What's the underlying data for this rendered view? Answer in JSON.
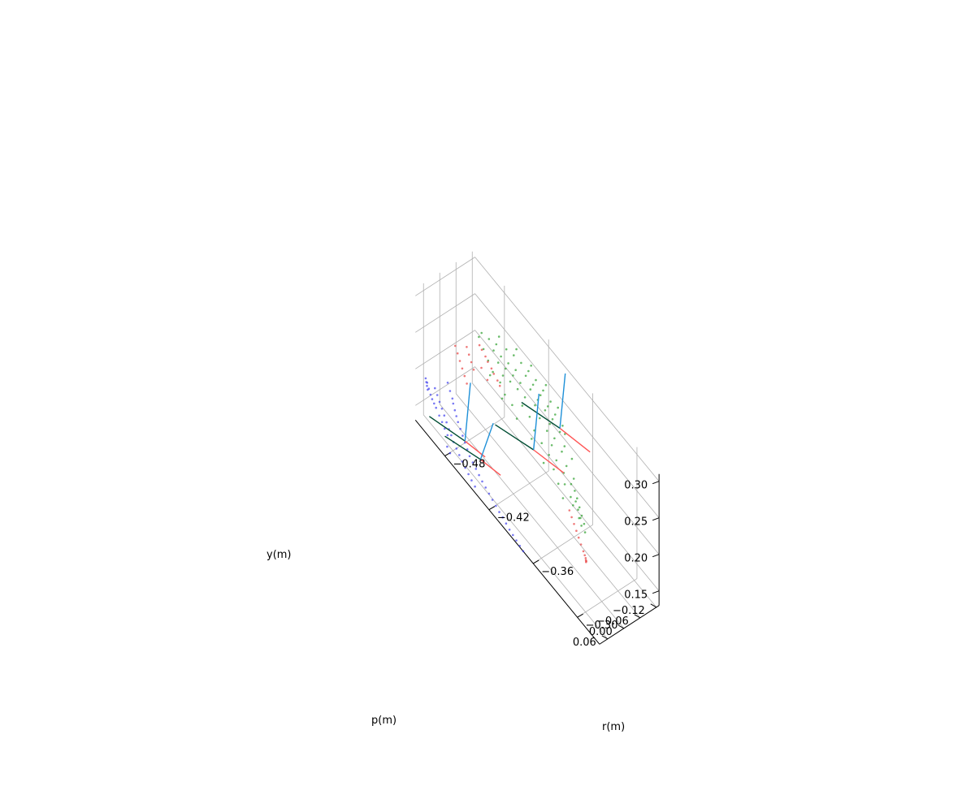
{
  "chart_data": {
    "type": "scatter",
    "projection": "3d",
    "view": {
      "elevation_deg": 30,
      "azimuth_deg": -135
    },
    "grid": true,
    "legend": "none",
    "title": "",
    "axes": {
      "r": {
        "label": "r(m)",
        "ticks": [
          -0.48,
          -0.42,
          -0.36,
          -0.3
        ],
        "tick_labels": [
          "−0.48",
          "−0.42",
          "−0.36",
          "−0.30"
        ],
        "range": [
          -0.52,
          -0.27
        ]
      },
      "p": {
        "label": "p(m)",
        "ticks": [
          -0.12,
          -0.06,
          0.0,
          0.06
        ],
        "tick_labels": [
          "−0.12",
          "−0.06",
          "0.00",
          "0.06"
        ],
        "range": [
          -0.13,
          0.09
        ]
      },
      "y": {
        "label": "y(m)",
        "ticks": [
          0.15,
          0.2,
          0.25,
          0.3
        ],
        "tick_labels": [
          "0.15",
          "0.20",
          "0.25",
          "0.30"
        ],
        "range": [
          0.13,
          0.31
        ]
      }
    },
    "series": [
      {
        "color": "#2ca02c",
        "points": [
          [
            -0.49,
            -0.1,
            0.232
          ],
          [
            -0.48,
            -0.1,
            0.237
          ],
          [
            -0.47,
            -0.11,
            0.24
          ],
          [
            -0.46,
            -0.11,
            0.244
          ],
          [
            -0.45,
            -0.11,
            0.246
          ],
          [
            -0.44,
            -0.11,
            0.247
          ],
          [
            -0.43,
            -0.11,
            0.247
          ],
          [
            -0.42,
            -0.11,
            0.245
          ],
          [
            -0.41,
            -0.11,
            0.242
          ],
          [
            -0.4,
            -0.1,
            0.239
          ],
          [
            -0.39,
            -0.1,
            0.236
          ],
          [
            -0.385,
            -0.095,
            0.232
          ],
          [
            -0.48,
            -0.09,
            0.231
          ],
          [
            -0.47,
            -0.09,
            0.235
          ],
          [
            -0.46,
            -0.09,
            0.238
          ],
          [
            -0.45,
            -0.09,
            0.241
          ],
          [
            -0.44,
            -0.1,
            0.243
          ],
          [
            -0.43,
            -0.1,
            0.243
          ],
          [
            -0.42,
            -0.1,
            0.241
          ],
          [
            -0.41,
            -0.1,
            0.238
          ],
          [
            -0.4,
            -0.09,
            0.235
          ],
          [
            -0.39,
            -0.09,
            0.23
          ],
          [
            -0.38,
            -0.08,
            0.225
          ],
          [
            -0.37,
            -0.08,
            0.22
          ],
          [
            -0.47,
            -0.08,
            0.229
          ],
          [
            -0.46,
            -0.08,
            0.233
          ],
          [
            -0.45,
            -0.08,
            0.236
          ],
          [
            -0.44,
            -0.08,
            0.238
          ],
          [
            -0.43,
            -0.09,
            0.239
          ],
          [
            -0.42,
            -0.09,
            0.237
          ],
          [
            -0.41,
            -0.09,
            0.235
          ],
          [
            -0.4,
            -0.08,
            0.231
          ],
          [
            -0.39,
            -0.07,
            0.226
          ],
          [
            -0.38,
            -0.07,
            0.22
          ],
          [
            -0.37,
            -0.06,
            0.215
          ],
          [
            -0.36,
            -0.06,
            0.21
          ],
          [
            -0.36,
            -0.05,
            0.205
          ],
          [
            -0.355,
            -0.05,
            0.202
          ],
          [
            -0.35,
            -0.045,
            0.199
          ],
          [
            -0.35,
            -0.04,
            0.196
          ],
          [
            -0.345,
            -0.04,
            0.194
          ],
          [
            -0.345,
            -0.035,
            0.192
          ],
          [
            -0.34,
            -0.035,
            0.19
          ],
          [
            -0.34,
            -0.03,
            0.188
          ],
          [
            -0.335,
            -0.03,
            0.186
          ],
          [
            -0.46,
            -0.07,
            0.226
          ],
          [
            -0.45,
            -0.07,
            0.23
          ],
          [
            -0.44,
            -0.07,
            0.232
          ],
          [
            -0.43,
            -0.07,
            0.233
          ],
          [
            -0.42,
            -0.08,
            0.232
          ],
          [
            -0.41,
            -0.07,
            0.229
          ],
          [
            -0.4,
            -0.07,
            0.224
          ],
          [
            -0.39,
            -0.06,
            0.219
          ],
          [
            -0.38,
            -0.05,
            0.213
          ],
          [
            -0.37,
            -0.05,
            0.208
          ],
          [
            -0.5,
            -0.1,
            0.228
          ],
          [
            -0.5,
            -0.09,
            0.225
          ],
          [
            -0.49,
            -0.08,
            0.223
          ],
          [
            -0.48,
            -0.07,
            0.222
          ],
          [
            -0.47,
            -0.06,
            0.221
          ],
          [
            -0.46,
            -0.06,
            0.219
          ],
          [
            -0.45,
            -0.05,
            0.217
          ],
          [
            -0.44,
            -0.05,
            0.215
          ],
          [
            -0.43,
            -0.06,
            0.224
          ],
          [
            -0.42,
            -0.06,
            0.221
          ],
          [
            -0.41,
            -0.05,
            0.217
          ],
          [
            -0.4,
            -0.05,
            0.212
          ],
          [
            -0.39,
            -0.05,
            0.208
          ],
          [
            -0.38,
            -0.04,
            0.203
          ],
          [
            -0.365,
            -0.04,
            0.201
          ],
          [
            -0.355,
            -0.035,
            0.197
          ],
          [
            -0.35,
            -0.03,
            0.193
          ],
          [
            -0.34,
            -0.025,
            0.189
          ],
          [
            -0.335,
            -0.02,
            0.186
          ],
          [
            -0.33,
            -0.02,
            0.183
          ],
          [
            -0.48,
            -0.11,
            0.245
          ],
          [
            -0.46,
            -0.12,
            0.25
          ],
          [
            -0.44,
            -0.12,
            0.252
          ],
          [
            -0.42,
            -0.12,
            0.25
          ],
          [
            -0.4,
            -0.11,
            0.246
          ],
          [
            -0.47,
            -0.05,
            0.219
          ],
          [
            -0.45,
            -0.04,
            0.214
          ],
          [
            -0.43,
            -0.04,
            0.211
          ],
          [
            -0.41,
            -0.04,
            0.208
          ],
          [
            -0.39,
            -0.03,
            0.202
          ],
          [
            -0.37,
            -0.03,
            0.198
          ],
          [
            -0.36,
            -0.02,
            0.193
          ]
        ]
      },
      {
        "color": "#4040ee",
        "points": [
          [
            -0.5,
            0.025,
            0.19
          ],
          [
            -0.495,
            0.03,
            0.186
          ],
          [
            -0.49,
            0.035,
            0.183
          ],
          [
            -0.487,
            0.04,
            0.181
          ],
          [
            -0.483,
            0.045,
            0.178
          ],
          [
            -0.479,
            0.05,
            0.176
          ],
          [
            -0.475,
            0.055,
            0.174
          ],
          [
            -0.47,
            0.06,
            0.172
          ],
          [
            -0.465,
            0.065,
            0.17
          ],
          [
            -0.46,
            0.07,
            0.168
          ],
          [
            -0.455,
            0.075,
            0.166
          ],
          [
            -0.45,
            0.08,
            0.164
          ],
          [
            -0.445,
            0.082,
            0.162
          ],
          [
            -0.44,
            0.084,
            0.16
          ],
          [
            -0.435,
            0.086,
            0.158
          ],
          [
            -0.43,
            0.088,
            0.156
          ],
          [
            -0.425,
            0.089,
            0.154
          ],
          [
            -0.42,
            0.09,
            0.152
          ],
          [
            -0.415,
            0.091,
            0.15
          ],
          [
            -0.41,
            0.092,
            0.148
          ],
          [
            -0.405,
            0.093,
            0.146
          ],
          [
            -0.4,
            0.094,
            0.145
          ],
          [
            -0.395,
            0.095,
            0.143
          ],
          [
            -0.39,
            0.096,
            0.141
          ],
          [
            -0.385,
            0.097,
            0.14
          ],
          [
            -0.38,
            0.098,
            0.139
          ],
          [
            -0.375,
            0.099,
            0.138
          ],
          [
            -0.37,
            0.1,
            0.137
          ],
          [
            -0.51,
            0.045,
            0.175
          ],
          [
            -0.505,
            0.05,
            0.173
          ],
          [
            -0.5,
            0.055,
            0.171
          ],
          [
            -0.495,
            0.06,
            0.169
          ],
          [
            -0.49,
            0.065,
            0.167
          ],
          [
            -0.485,
            0.07,
            0.165
          ],
          [
            -0.48,
            0.075,
            0.163
          ],
          [
            -0.475,
            0.08,
            0.162
          ],
          [
            -0.47,
            0.085,
            0.16
          ],
          [
            -0.465,
            0.088,
            0.158
          ],
          [
            -0.46,
            0.091,
            0.156
          ],
          [
            -0.455,
            0.094,
            0.154
          ],
          [
            -0.45,
            0.096,
            0.152
          ],
          [
            -0.445,
            0.098,
            0.15
          ],
          [
            -0.44,
            0.1,
            0.148
          ],
          [
            -0.435,
            0.101,
            0.146
          ],
          [
            -0.515,
            0.06,
            0.18
          ],
          [
            -0.512,
            0.062,
            0.176
          ],
          [
            -0.509,
            0.064,
            0.172
          ],
          [
            -0.506,
            0.066,
            0.17
          ],
          [
            -0.503,
            0.067,
            0.168
          ],
          [
            -0.5,
            0.068,
            0.166
          ],
          [
            -0.495,
            0.07,
            0.162
          ],
          [
            -0.49,
            0.073,
            0.16
          ],
          [
            -0.485,
            0.077,
            0.158
          ],
          [
            -0.48,
            0.08,
            0.156
          ],
          [
            -0.52,
            0.052,
            0.178
          ],
          [
            -0.518,
            0.055,
            0.176
          ],
          [
            -0.516,
            0.058,
            0.174
          ],
          [
            -0.514,
            0.061,
            0.172
          ],
          [
            -0.475,
            0.095,
            0.15
          ],
          [
            -0.47,
            0.098,
            0.148
          ]
        ]
      },
      {
        "color": "#e84040",
        "points": [
          [
            -0.48,
            -0.06,
            0.23
          ],
          [
            -0.47,
            -0.055,
            0.227
          ],
          [
            -0.46,
            -0.05,
            0.224
          ],
          [
            -0.49,
            -0.065,
            0.232
          ],
          [
            -0.485,
            -0.06,
            0.233
          ],
          [
            -0.475,
            -0.055,
            0.23
          ],
          [
            -0.465,
            -0.05,
            0.227
          ],
          [
            -0.455,
            -0.045,
            0.224
          ],
          [
            -0.48,
            -0.045,
            0.218
          ],
          [
            -0.47,
            -0.04,
            0.215
          ],
          [
            -0.5,
            -0.045,
            0.222
          ],
          [
            -0.495,
            -0.04,
            0.219
          ],
          [
            -0.49,
            -0.035,
            0.216
          ],
          [
            -0.485,
            -0.03,
            0.213
          ],
          [
            -0.51,
            -0.03,
            0.215
          ],
          [
            -0.505,
            -0.025,
            0.212
          ],
          [
            -0.5,
            -0.02,
            0.209
          ],
          [
            -0.495,
            -0.015,
            0.206
          ],
          [
            -0.49,
            -0.01,
            0.203
          ],
          [
            -0.485,
            -0.005,
            0.2
          ],
          [
            -0.355,
            -0.03,
            0.18
          ],
          [
            -0.35,
            -0.025,
            0.178
          ],
          [
            -0.345,
            -0.02,
            0.176
          ],
          [
            -0.34,
            -0.015,
            0.174
          ],
          [
            -0.335,
            -0.01,
            0.172
          ],
          [
            -0.33,
            -0.005,
            0.17
          ],
          [
            -0.325,
            0.0,
            0.168
          ],
          [
            -0.322,
            0.003,
            0.167
          ],
          [
            -0.32,
            0.005,
            0.166
          ],
          [
            -0.319,
            0.007,
            0.165
          ],
          [
            -0.318,
            0.008,
            0.165
          ],
          [
            -0.318,
            0.009,
            0.164
          ]
        ]
      }
    ],
    "frames": [
      {
        "origin": [
          -0.39,
          -0.09,
          0.235
        ],
        "x_end": [
          -0.36,
          -0.12,
          0.232
        ],
        "y_end": [
          -0.42,
          -0.03,
          0.248
        ],
        "z_end": [
          -0.39,
          -0.11,
          0.305
        ]
      },
      {
        "origin": [
          -0.4,
          -0.02,
          0.21
        ],
        "x_end": [
          -0.37,
          -0.05,
          0.208
        ],
        "y_end": [
          -0.43,
          0.04,
          0.222
        ],
        "z_end": [
          -0.4,
          -0.04,
          0.282
        ]
      },
      {
        "origin": [
          -0.46,
          0.07,
          0.17
        ],
        "x_end": [
          -0.44,
          0.05,
          0.168
        ],
        "y_end": [
          -0.49,
          0.12,
          0.179
        ],
        "z_end": [
          -0.46,
          0.05,
          0.245
        ]
      },
      {
        "origin": [
          -0.45,
          0.04,
          0.15
        ],
        "x_end": [
          -0.43,
          0.02,
          0.148
        ],
        "y_end": [
          -0.48,
          0.09,
          0.157
        ],
        "z_end": [
          -0.44,
          0.02,
          0.207
        ]
      }
    ],
    "frame_colors": {
      "x": "#ff5555",
      "y": "#004d33",
      "z": "#1e90d8"
    }
  }
}
